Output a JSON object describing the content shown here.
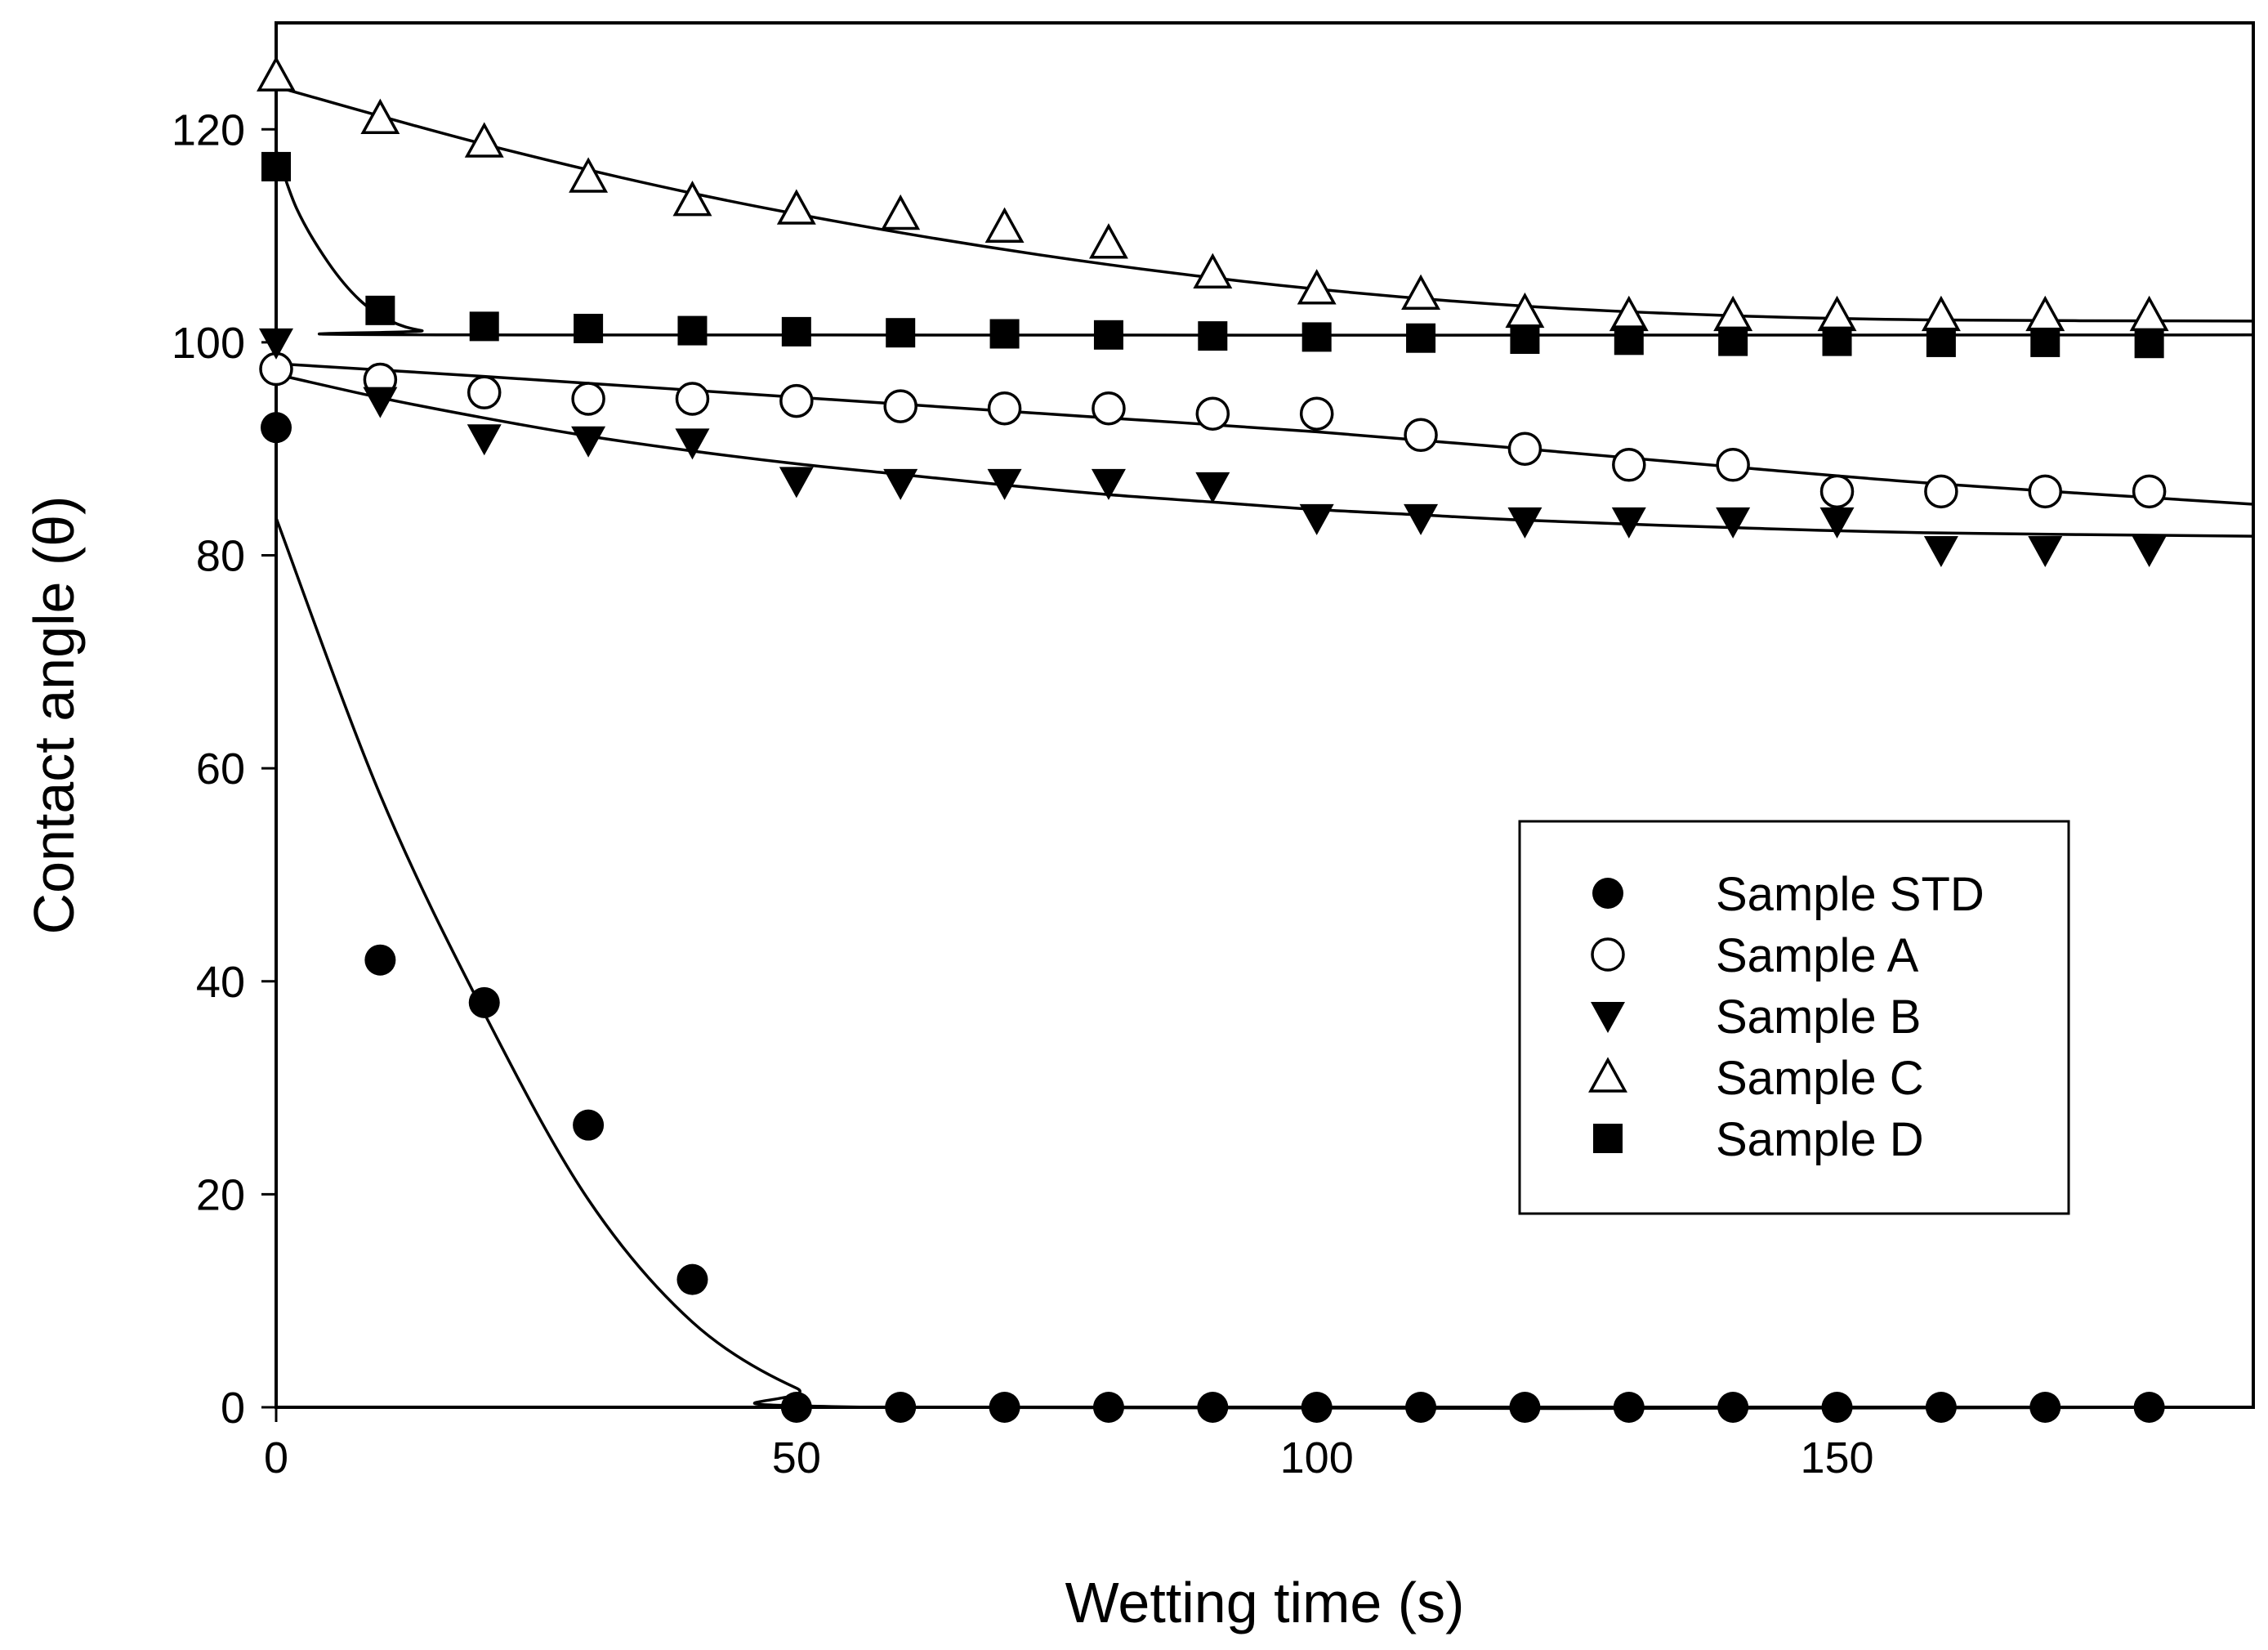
{
  "chart_data": {
    "type": "scatter",
    "title": "",
    "xlabel": "Wetting time (s)",
    "ylabel": "Contact angle (θ)",
    "xlim": [
      0,
      190
    ],
    "ylim": [
      0,
      130
    ],
    "x_ticks": [
      0,
      50,
      100,
      150
    ],
    "y_ticks": [
      0,
      20,
      40,
      60,
      80,
      100,
      120
    ],
    "grid": false,
    "legend_position": "center-right",
    "x": [
      0,
      10,
      20,
      30,
      40,
      50,
      60,
      70,
      80,
      90,
      100,
      110,
      120,
      130,
      140,
      150,
      160,
      170,
      180
    ],
    "series": [
      {
        "name": "Sample STD",
        "marker": "filled-circle",
        "values": [
          92,
          42,
          38,
          26.5,
          12,
          0,
          0,
          0,
          0,
          0,
          0,
          0,
          0,
          0,
          0,
          0,
          0,
          0,
          0
        ],
        "fit": [
          [
            0,
            83.5
          ],
          [
            10,
            57.5
          ],
          [
            20,
            37
          ],
          [
            30,
            19.5
          ],
          [
            40,
            8
          ],
          [
            50,
            1.8
          ],
          [
            58,
            0
          ],
          [
            190,
            0
          ]
        ]
      },
      {
        "name": "Sample A",
        "marker": "open-circle",
        "values": [
          97.5,
          96.5,
          95.3,
          94.7,
          94.7,
          94.5,
          94,
          93.8,
          93.8,
          93.3,
          93.3,
          91.3,
          90,
          88.5,
          88.5,
          86,
          86,
          86,
          86
        ],
        "fit": [
          [
            0,
            98
          ],
          [
            20,
            96.8
          ],
          [
            40,
            95.5
          ],
          [
            60,
            94.2
          ],
          [
            80,
            92.9
          ],
          [
            100,
            91.6
          ],
          [
            120,
            90
          ],
          [
            140,
            88.3
          ],
          [
            160,
            86.7
          ],
          [
            190,
            84.8
          ]
        ]
      },
      {
        "name": "Sample B",
        "marker": "filled-triangle-down",
        "values": [
          100,
          94.5,
          91,
          90.8,
          90.6,
          87,
          86.8,
          86.8,
          86.8,
          86.5,
          83.5,
          83.5,
          83.2,
          83.2,
          83.2,
          83.2,
          80.5,
          80.5,
          80.5
        ],
        "fit": [
          [
            0,
            97
          ],
          [
            10,
            94.8
          ],
          [
            20,
            92.9
          ],
          [
            30,
            91.2
          ],
          [
            40,
            89.8
          ],
          [
            50,
            88.6
          ],
          [
            60,
            87.6
          ],
          [
            70,
            86.6
          ],
          [
            80,
            85.7
          ],
          [
            90,
            85
          ],
          [
            100,
            84.3
          ],
          [
            110,
            83.8
          ],
          [
            120,
            83.3
          ],
          [
            140,
            82.6
          ],
          [
            160,
            82.1
          ],
          [
            190,
            81.8
          ]
        ]
      },
      {
        "name": "Sample C",
        "marker": "open-triangle-up",
        "values": [
          125,
          121,
          118.8,
          115.5,
          113.3,
          112.5,
          112,
          110.8,
          109.3,
          106.5,
          105,
          104.5,
          102.8,
          102.5,
          102.5,
          102.5,
          102.5,
          102.5,
          102.5
        ],
        "fit": [
          [
            0,
            124
          ],
          [
            20,
            118.6
          ],
          [
            40,
            114
          ],
          [
            60,
            110.3
          ],
          [
            80,
            107.3
          ],
          [
            100,
            105
          ],
          [
            120,
            103.4
          ],
          [
            140,
            102.5
          ],
          [
            160,
            102.1
          ],
          [
            190,
            102
          ]
        ]
      },
      {
        "name": "Sample D",
        "marker": "filled-square",
        "values": [
          116.5,
          103,
          101.5,
          101.3,
          101.1,
          101,
          100.9,
          100.8,
          100.7,
          100.6,
          100.5,
          100.4,
          100.3,
          100.2,
          100.1,
          100.1,
          100,
          100,
          99.9
        ],
        "fit": [
          [
            0,
            118
          ],
          [
            2,
            112.5
          ],
          [
            5,
            107.5
          ],
          [
            8,
            104
          ],
          [
            11,
            102
          ],
          [
            14,
            101.1
          ],
          [
            18,
            100.7
          ],
          [
            190,
            100.7
          ]
        ]
      }
    ]
  }
}
